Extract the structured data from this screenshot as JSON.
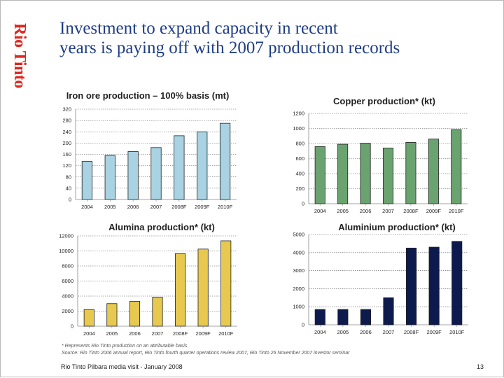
{
  "logo": {
    "text": "Rio Tinto"
  },
  "title": {
    "line1": "Investment to expand capacity in recent",
    "line2": "years is paying off with 2007 production records"
  },
  "chart_data": [
    {
      "id": "iron-ore",
      "type": "bar",
      "title": "Iron ore production – 100% basis (mt)",
      "categories": [
        "2004",
        "2005",
        "2006",
        "2007",
        "2008F",
        "2009F",
        "2010F"
      ],
      "values": [
        135,
        156,
        170,
        184,
        226,
        240,
        270
      ],
      "ylim": [
        0,
        320
      ],
      "yticks": [
        0,
        40,
        80,
        120,
        160,
        200,
        240,
        280,
        320
      ],
      "color": "#a9d2e3",
      "xlabel": "",
      "ylabel": "",
      "grid": true
    },
    {
      "id": "copper",
      "type": "bar",
      "title": "Copper production* (kt)",
      "categories": [
        "2004",
        "2005",
        "2006",
        "2007",
        "2008F",
        "2009F",
        "2010F"
      ],
      "values": [
        760,
        790,
        805,
        740,
        815,
        860,
        985
      ],
      "ylim": [
        0,
        1200
      ],
      "yticks": [
        0,
        200,
        400,
        600,
        800,
        1000,
        1200
      ],
      "color": "#6aa36f",
      "xlabel": "",
      "ylabel": "",
      "grid": true
    },
    {
      "id": "alumina",
      "type": "bar",
      "title": "Alumina production* (kt)",
      "categories": [
        "2004",
        "2005",
        "2006",
        "2007",
        "2008F",
        "2009F",
        "2010F"
      ],
      "values": [
        2200,
        3000,
        3300,
        3850,
        9650,
        10250,
        11350
      ],
      "ylim": [
        0,
        12000
      ],
      "yticks": [
        0,
        2000,
        4000,
        6000,
        8000,
        10000,
        12000
      ],
      "color": "#e8c94f",
      "xlabel": "",
      "ylabel": "",
      "grid": true
    },
    {
      "id": "aluminium",
      "type": "bar",
      "title": "Aluminium production* (kt)",
      "categories": [
        "2004",
        "2005",
        "2006",
        "2007",
        "2008F",
        "2009F",
        "2010F"
      ],
      "values": [
        850,
        850,
        850,
        1500,
        4250,
        4300,
        4620
      ],
      "ylim": [
        0,
        5000
      ],
      "yticks": [
        0,
        1000,
        2000,
        3000,
        4000,
        5000
      ],
      "color": "#0d1a4d",
      "xlabel": "",
      "ylabel": "",
      "grid": true
    }
  ],
  "footnotes": {
    "note": "* Represents Rio Tinto production on an attributable basis",
    "source": "Source:  Rio Tinto 2006 annual report, Rio Tinto fourth quarter operations review 2007, Rio Tinto 26 November 2007 investor seminar"
  },
  "footer": {
    "event": "Rio Tinto Pilbara media visit - January 2008",
    "page": "13"
  }
}
